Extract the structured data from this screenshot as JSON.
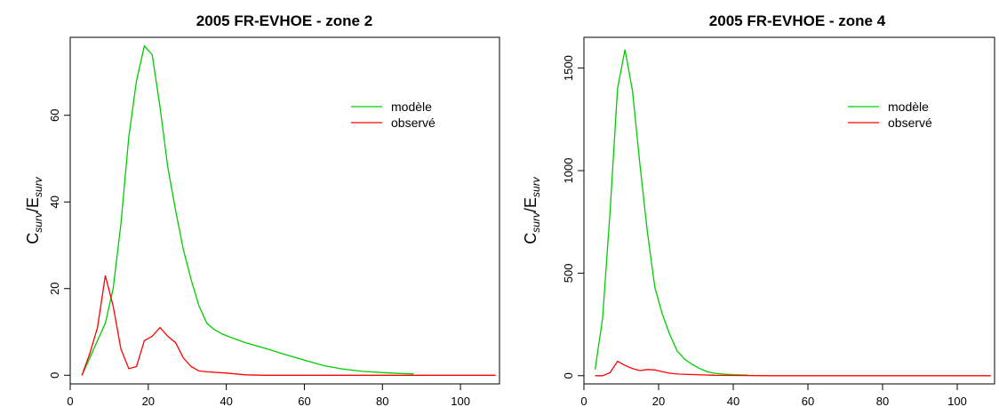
{
  "chart_data": [
    {
      "type": "line",
      "title": "2005  FR-EVHOE - zone 2",
      "xlabel": "",
      "ylabel": {
        "main_c": "C",
        "sub_c": "surv",
        "slash": "/",
        "main_e": "E",
        "sub_e": "surv"
      },
      "xlim": [
        0,
        110
      ],
      "ylim": [
        -2,
        78
      ],
      "xticks": [
        0,
        20,
        40,
        60,
        80,
        100
      ],
      "yticks": [
        0,
        20,
        40,
        60
      ],
      "xtick_labels": [
        "0",
        "20",
        "40",
        "60",
        "80",
        "100"
      ],
      "ytick_labels": [
        "0",
        "20",
        "40",
        "60"
      ],
      "grid": false,
      "legend_position": "top-right",
      "series": [
        {
          "name": "modèle",
          "color": "#00cc00",
          "x": [
            3,
            5,
            7,
            9,
            11,
            13,
            15,
            17,
            19,
            21,
            23,
            25,
            27,
            29,
            31,
            33,
            35,
            37,
            39,
            41,
            45,
            50,
            55,
            60,
            65,
            70,
            75,
            80,
            85,
            88
          ],
          "y": [
            0,
            4,
            8,
            12,
            20,
            35,
            55,
            68,
            76,
            74,
            62,
            48,
            38,
            29,
            22,
            16,
            12,
            10.5,
            9.5,
            8.8,
            7.5,
            6.2,
            4.8,
            3.5,
            2.2,
            1.4,
            0.9,
            0.6,
            0.4,
            0.3
          ]
        },
        {
          "name": "observé",
          "color": "#ff0000",
          "x": [
            3,
            5,
            7,
            9,
            11,
            13,
            15,
            17,
            19,
            21,
            23,
            25,
            27,
            29,
            31,
            33,
            35,
            40,
            45,
            50,
            60,
            70,
            80,
            90,
            100,
            109
          ],
          "y": [
            0,
            5,
            11,
            23,
            16,
            6,
            1.5,
            2,
            8,
            9,
            11,
            9,
            7.5,
            4,
            2,
            1,
            0.8,
            0.5,
            0.1,
            0,
            0,
            0,
            0,
            0,
            0,
            0
          ]
        }
      ]
    },
    {
      "type": "line",
      "title": "2005  FR-EVHOE - zone 4",
      "xlabel": "",
      "ylabel": {
        "main_c": "C",
        "sub_c": "surv",
        "slash": "/",
        "main_e": "E",
        "sub_e": "surv"
      },
      "xlim": [
        0,
        110
      ],
      "ylim": [
        -40,
        1650
      ],
      "xticks": [
        0,
        20,
        40,
        60,
        80,
        100
      ],
      "yticks": [
        0,
        500,
        1000,
        1500
      ],
      "xtick_labels": [
        "0",
        "20",
        "40",
        "60",
        "80",
        "100"
      ],
      "ytick_labels": [
        "0",
        "500",
        "1000",
        "1500"
      ],
      "grid": false,
      "legend_position": "top-right",
      "series": [
        {
          "name": "modèle",
          "color": "#00cc00",
          "x": [
            3,
            5,
            7,
            9,
            11,
            13,
            15,
            17,
            19,
            21,
            23,
            25,
            27,
            29,
            31,
            33,
            35,
            37,
            40,
            44
          ],
          "y": [
            30,
            280,
            800,
            1400,
            1590,
            1390,
            1030,
            700,
            430,
            300,
            200,
            120,
            80,
            55,
            35,
            20,
            12,
            8,
            5,
            3
          ]
        },
        {
          "name": "observé",
          "color": "#ff0000",
          "x": [
            3,
            5,
            7,
            9,
            11,
            13,
            15,
            17,
            19,
            21,
            23,
            25,
            30,
            35,
            40,
            50,
            60,
            70,
            80,
            90,
            100,
            109
          ],
          "y": [
            0,
            0,
            15,
            70,
            50,
            35,
            25,
            30,
            28,
            20,
            12,
            8,
            5,
            2,
            1,
            0,
            0,
            0,
            0,
            0,
            0,
            0
          ]
        }
      ]
    }
  ]
}
